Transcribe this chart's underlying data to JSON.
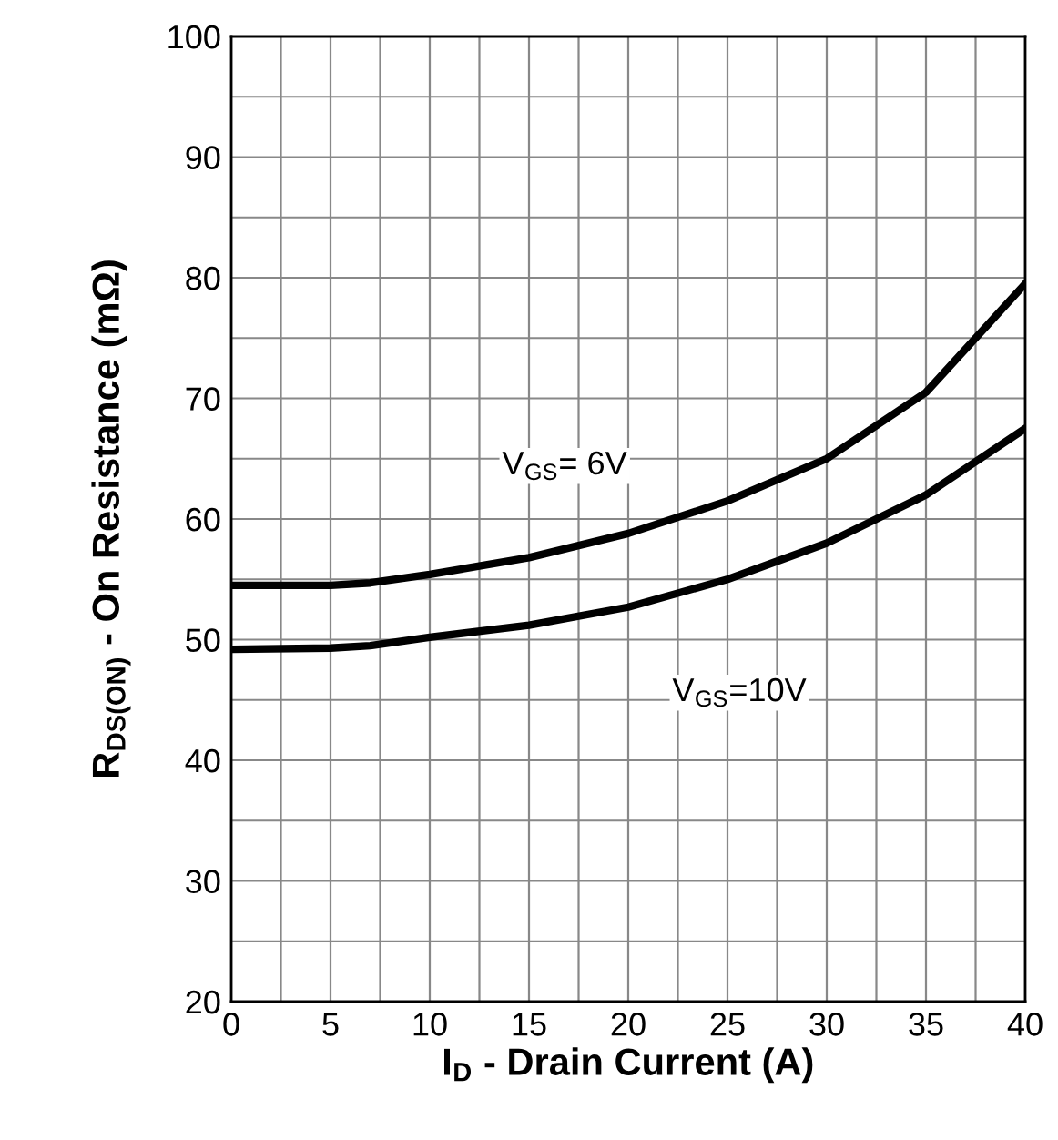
{
  "chart_data": {
    "type": "line",
    "xlabel": "I$_{D}$ - Drain Current (A)",
    "ylabel": "R$_{DS(ON)}$ - On Resistance (mΩ)",
    "x": [
      0,
      5,
      7,
      10,
      15,
      20,
      25,
      30,
      35,
      40
    ],
    "series": [
      {
        "color": "#000000",
        "values": [
          54.5,
          54.5,
          54.7,
          55.4,
          56.8,
          58.8,
          61.5,
          65,
          70.5,
          79.5
        ]
      },
      {
        "color": "#000000",
        "values": [
          49.2,
          49.3,
          49.5,
          50.2,
          51.2,
          52.7,
          55,
          58,
          62,
          67.5
        ]
      }
    ],
    "xlim": [
      0,
      40
    ],
    "ylim": [
      20,
      100
    ],
    "xticks": [
      0,
      {
        "value": 2.5,
        "label": null
      },
      5,
      {
        "value": 7.5,
        "label": null
      },
      10,
      {
        "value": 12.5,
        "label": null
      },
      15,
      {
        "value": 17.5,
        "label": null
      },
      20,
      {
        "value": 22.5,
        "label": null
      },
      25,
      {
        "value": 27.5,
        "label": null
      },
      30,
      {
        "value": 32.5,
        "label": null
      },
      35,
      {
        "value": 37.5,
        "label": null
      },
      40
    ],
    "yticks": [
      20,
      {
        "value": 25,
        "label": null
      },
      30,
      {
        "value": 35,
        "label": null
      },
      40,
      {
        "value": 45,
        "label": null
      },
      50,
      {
        "value": 55,
        "label": null
      },
      60,
      {
        "value": 65,
        "label": null
      },
      70,
      {
        "value": 75,
        "label": null
      },
      80,
      {
        "value": 85,
        "label": null
      },
      90,
      {
        "value": 95,
        "label": null
      },
      100
    ],
    "grid": true,
    "marker": "none",
    "line_style": "solid",
    "annotations": [
      "V$_{GS}$= 6V",
      "V$_{GS}$=10V"
    ]
  }
}
